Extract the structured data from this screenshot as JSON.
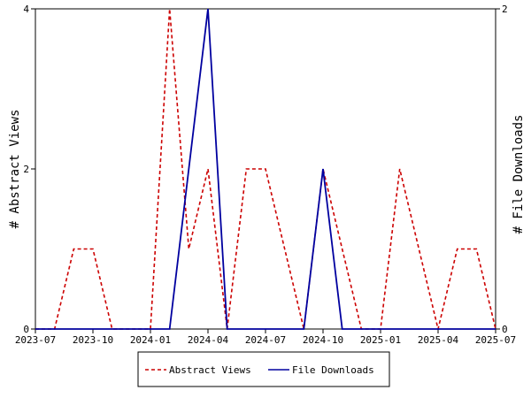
{
  "chart_data": {
    "type": "line",
    "title": "",
    "xlabel": "",
    "y_left_label": "# Abstract Views",
    "y_right_label": "# File Downloads",
    "x_ticks": [
      "2023-07",
      "2023-10",
      "2024-01",
      "2024-04",
      "2024-07",
      "2024-10",
      "2025-01",
      "2025-04",
      "2025-07"
    ],
    "y_left_ticks": [
      "0",
      "2",
      "4"
    ],
    "y_right_ticks": [
      "0",
      "2"
    ],
    "y_left_range": [
      0,
      4
    ],
    "y_right_range": [
      0,
      2
    ],
    "x": [
      "2023-07",
      "2023-08",
      "2023-09",
      "2023-10",
      "2023-11",
      "2023-12",
      "2024-01",
      "2024-02",
      "2024-03",
      "2024-04",
      "2024-05",
      "2024-06",
      "2024-07",
      "2024-08",
      "2024-09",
      "2024-10",
      "2024-11",
      "2024-12",
      "2025-01",
      "2025-02",
      "2025-03",
      "2025-04",
      "2025-05",
      "2025-06",
      "2025-07"
    ],
    "series": [
      {
        "name": "Abstract Views",
        "axis": "left",
        "color": "#cc0000",
        "dash": true,
        "values": [
          0,
          0,
          1,
          1,
          0,
          0,
          0,
          4,
          1,
          2,
          0,
          2,
          2,
          1,
          0,
          2,
          1,
          0,
          0,
          2,
          1,
          0,
          1,
          1,
          0
        ]
      },
      {
        "name": "File Downloads",
        "axis": "right",
        "color": "#00009f",
        "dash": false,
        "values": [
          0,
          0,
          0,
          0,
          0,
          0,
          0,
          0,
          1,
          2,
          0,
          0,
          0,
          0,
          0,
          1,
          0,
          0,
          0,
          0,
          0,
          0,
          0,
          0,
          0
        ]
      }
    ],
    "legend_position": "bottom-center",
    "grid": false
  }
}
